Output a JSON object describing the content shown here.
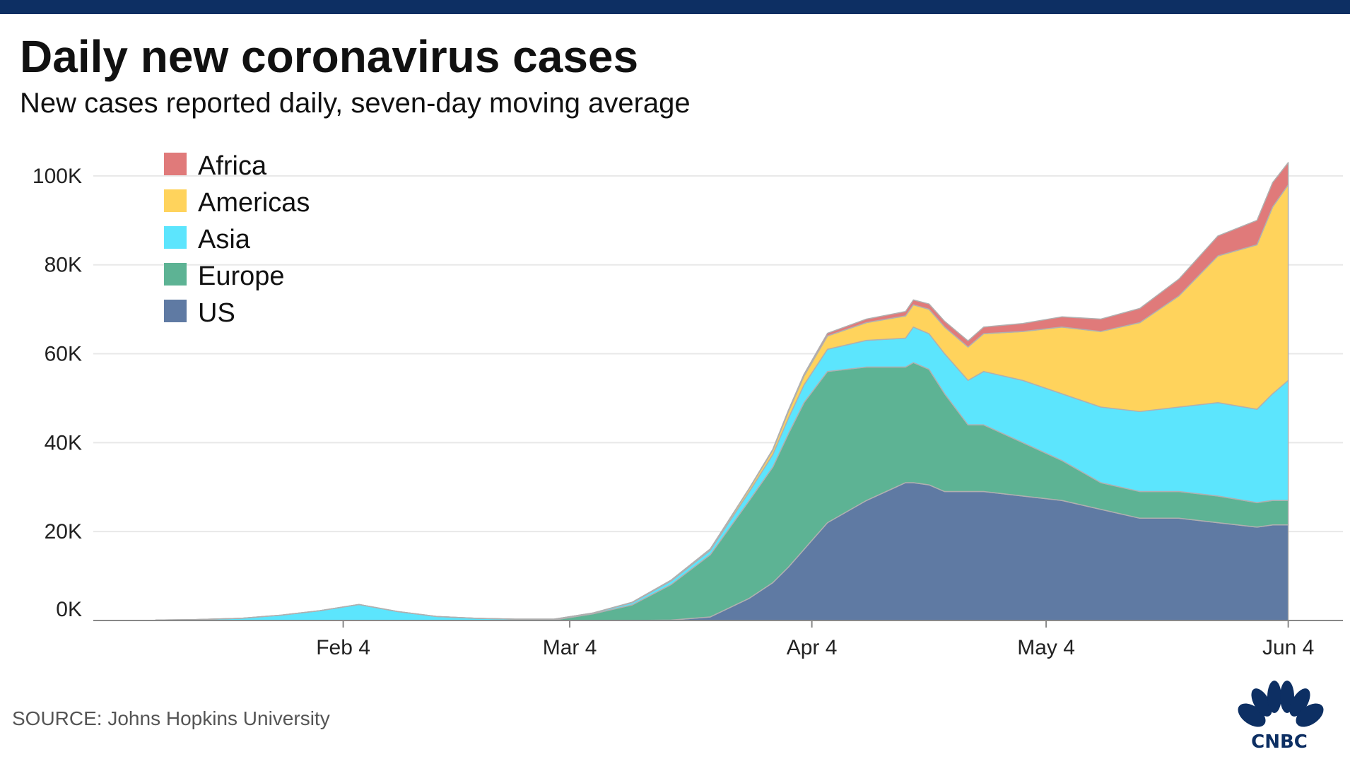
{
  "header": {
    "title": "Daily new coronavirus cases",
    "subtitle": "New cases reported daily, seven-day moving average"
  },
  "footer": {
    "source": "SOURCE: Johns Hopkins University",
    "logo_text": "CNBC"
  },
  "colors": {
    "top_bar": "#0d2f63",
    "Africa": "#e07a7a",
    "Americas": "#ffd35c",
    "Asia": "#5ce5fd",
    "Europe": "#5db394",
    "US": "#5f7aa3",
    "grid": "#e8e8e8",
    "axis": "#888888"
  },
  "chart_data": {
    "type": "area",
    "stacked": true,
    "title": "Daily new coronavirus cases",
    "subtitle": "New cases reported daily, seven-day moving average",
    "x_unit": "day offset from Jan 22, 2020",
    "x_ticks": [
      {
        "label": "Feb 4",
        "x": 13
      },
      {
        "label": "Mar 4",
        "x": 42
      },
      {
        "label": "Apr 4",
        "x": 73
      },
      {
        "label": "May 4",
        "x": 103
      },
      {
        "label": "Jun 4",
        "x": 134
      }
    ],
    "xlim": [
      -19,
      141
    ],
    "ylim": [
      0,
      103000
    ],
    "y_ticks": [
      {
        "label": "0K",
        "value": 0
      },
      {
        "label": "20K",
        "value": 20000
      },
      {
        "label": "40K",
        "value": 40000
      },
      {
        "label": "60K",
        "value": 60000
      },
      {
        "label": "80K",
        "value": 80000
      },
      {
        "label": "100K",
        "value": 100000
      }
    ],
    "grid": true,
    "legend_position": "top-left",
    "legend_order": [
      "Africa",
      "Americas",
      "Asia",
      "Europe",
      "US"
    ],
    "x": [
      -11,
      -6,
      0,
      5,
      10,
      15,
      20,
      25,
      30,
      35,
      40,
      45,
      50,
      55,
      60,
      65,
      68,
      70,
      72,
      75,
      80,
      85,
      86,
      88,
      90,
      93,
      95,
      100,
      105,
      110,
      115,
      120,
      125,
      130,
      132,
      134
    ],
    "series": [
      {
        "name": "US",
        "values": [
          0,
          0,
          0,
          0,
          0,
          0,
          0,
          0,
          0,
          0,
          0,
          0,
          0,
          100,
          800,
          5000,
          8500,
          12000,
          16000,
          22000,
          27000,
          31000,
          31000,
          30500,
          29000,
          29000,
          29000,
          28000,
          27000,
          25000,
          23000,
          23000,
          22000,
          21000,
          21500,
          21500
        ]
      },
      {
        "name": "Europe",
        "values": [
          0,
          0,
          0,
          0,
          0,
          0,
          0,
          0,
          0,
          0,
          100,
          1500,
          3500,
          8000,
          14000,
          22000,
          26000,
          30000,
          33000,
          34000,
          30000,
          26000,
          27000,
          26000,
          22000,
          15000,
          15000,
          12000,
          9000,
          6000,
          6000,
          6000,
          6000,
          5500,
          5500,
          5500
        ]
      },
      {
        "name": "Asia",
        "values": [
          100,
          200,
          500,
          1200,
          2200,
          3600,
          2000,
          900,
          500,
          300,
          200,
          200,
          500,
          800,
          1000,
          2000,
          2800,
          3500,
          4000,
          5000,
          6000,
          6500,
          8000,
          8000,
          9000,
          10000,
          12000,
          14000,
          15000,
          17000,
          18000,
          19000,
          21000,
          21000,
          24000,
          27000
        ]
      },
      {
        "name": "Americas",
        "values": [
          0,
          0,
          0,
          0,
          0,
          0,
          0,
          0,
          0,
          0,
          0,
          0,
          100,
          200,
          300,
          700,
          1000,
          1500,
          2000,
          3000,
          4000,
          5000,
          5000,
          5500,
          6000,
          7500,
          8500,
          11000,
          15000,
          17000,
          20000,
          25000,
          33000,
          37000,
          42000,
          44000
        ]
      },
      {
        "name": "Africa",
        "values": [
          0,
          0,
          0,
          0,
          0,
          0,
          0,
          0,
          0,
          0,
          0,
          0,
          0,
          0,
          0,
          100,
          200,
          300,
          400,
          600,
          800,
          1000,
          1100,
          1200,
          1300,
          1400,
          1500,
          1800,
          2300,
          2800,
          3200,
          3800,
          4500,
          5500,
          5500,
          5000
        ]
      }
    ]
  }
}
